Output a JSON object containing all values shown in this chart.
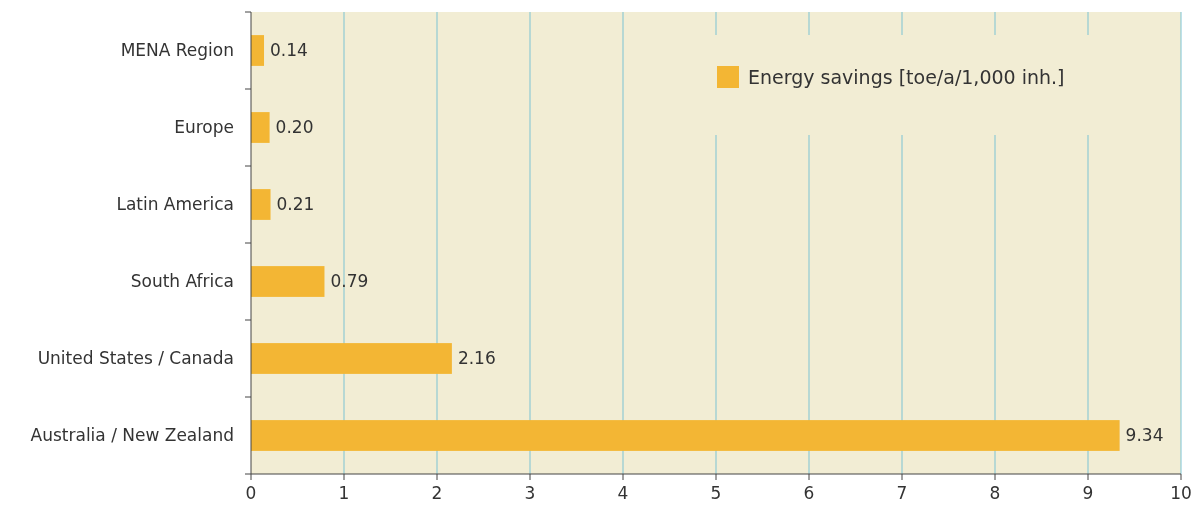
{
  "chart_data": {
    "type": "bar",
    "orientation": "horizontal",
    "categories": [
      "MENA Region",
      "Europe",
      "Latin America",
      "South Africa",
      "United States / Canada",
      "Australia / New Zealand"
    ],
    "series": [
      {
        "name": "Energy savings [toe/a/1,000 inh.]",
        "color": "#f3b634",
        "values": [
          0.14,
          0.2,
          0.21,
          0.79,
          2.16,
          9.34
        ],
        "value_labels": [
          "0.14",
          "0.20",
          "0.21",
          "0.79",
          "2.16",
          "9.34"
        ]
      }
    ],
    "xlim": [
      0,
      10
    ],
    "xticks": [
      0,
      1,
      2,
      3,
      4,
      5,
      6,
      7,
      8,
      9,
      10
    ],
    "grid": "x",
    "legend": "top right"
  }
}
